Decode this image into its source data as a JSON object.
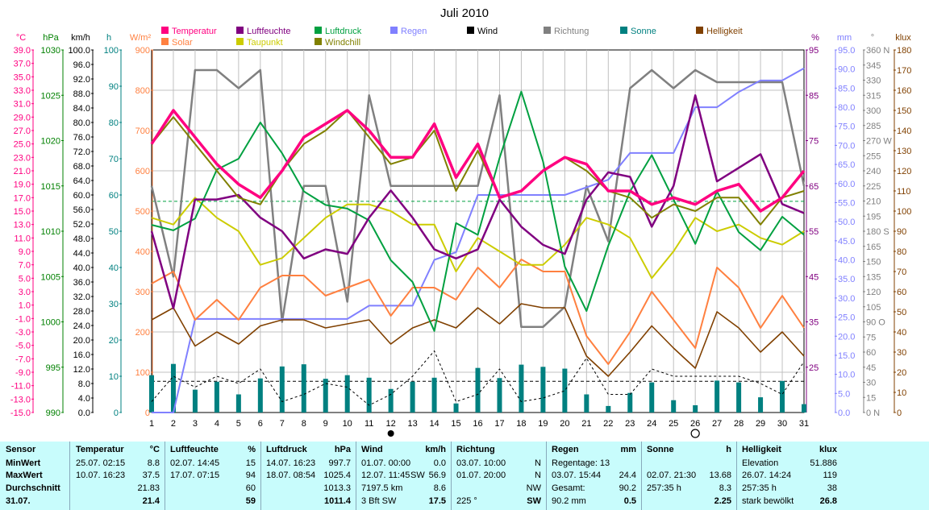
{
  "title": "Juli 2010",
  "colors": {
    "temperatur": "#ff0080",
    "solar": "#ff8040",
    "luftfeuchte": "#800080",
    "taupunkt": "#cccc00",
    "luftdruck": "#00a040",
    "windchill": "#808000",
    "regen": "#8080ff",
    "wind": "#000000",
    "richtung": "#808080",
    "sonne": "#008080",
    "helligkeit": "#804000"
  },
  "legend": [
    {
      "label": "Temperatur",
      "color": "#ff0080"
    },
    {
      "label": "Solar",
      "color": "#ff8040"
    },
    {
      "label": "Luftfeuchte",
      "color": "#800080"
    },
    {
      "label": "Taupunkt",
      "color": "#cccc00"
    },
    {
      "label": "Luftdruck",
      "color": "#00a040"
    },
    {
      "label": "Windchill",
      "color": "#808000"
    },
    {
      "label": "Regen",
      "color": "#8080ff"
    },
    {
      "label": "Wind",
      "color": "#000000"
    },
    {
      "label": "Richtung",
      "color": "#808080"
    },
    {
      "label": "Sonne",
      "color": "#008080"
    },
    {
      "label": "Helligkeit",
      "color": "#804000"
    }
  ],
  "axis_units": {
    "temp": "°C",
    "hpa": "hPa",
    "kmh": "km/h",
    "h": "h",
    "wm2": "W/m²",
    "pct": "%",
    "mm": "mm",
    "deg": "°",
    "klux": "klux"
  },
  "chart_data": {
    "type": "line",
    "title": "Juli 2010",
    "x": [
      1,
      2,
      3,
      4,
      5,
      6,
      7,
      8,
      9,
      10,
      11,
      12,
      13,
      14,
      15,
      16,
      17,
      18,
      19,
      20,
      21,
      22,
      23,
      24,
      25,
      26,
      27,
      28,
      29,
      30,
      31
    ],
    "series": [
      {
        "name": "Temperatur",
        "unit": "°C",
        "values": [
          25,
          30,
          26,
          22,
          19,
          17,
          21,
          26,
          28,
          30,
          27,
          23,
          23,
          28,
          20,
          25,
          17,
          18,
          21,
          23,
          22,
          18,
          18,
          16,
          17,
          16,
          18,
          19,
          15,
          17,
          21
        ]
      },
      {
        "name": "Windchill",
        "unit": "°C",
        "values": [
          25,
          29,
          25,
          21,
          17,
          16,
          21,
          25,
          27,
          30,
          26,
          22,
          23,
          27,
          18,
          24,
          17,
          18,
          21,
          23,
          21,
          18,
          17,
          14,
          16,
          15,
          17,
          17,
          13,
          17,
          18
        ]
      },
      {
        "name": "Taupunkt",
        "unit": "°C",
        "values": [
          14,
          13,
          17,
          14,
          12,
          7,
          8,
          11,
          14,
          16,
          16,
          15,
          13,
          13,
          6,
          11,
          9,
          7,
          7,
          10,
          14,
          13,
          11,
          5,
          9,
          14,
          12,
          13,
          11,
          10,
          12
        ]
      },
      {
        "name": "Luftfeuchte",
        "unit": "%",
        "values": [
          55,
          38,
          62,
          62,
          63,
          58,
          55,
          49,
          51,
          50,
          58,
          64,
          58,
          51,
          49,
          51,
          62,
          56,
          52,
          50,
          62,
          68,
          67,
          56,
          65,
          85,
          66,
          69,
          72,
          61,
          59
        ]
      },
      {
        "name": "Luftdruck",
        "unit": "hPa",
        "values": [
          1010.7,
          1010.1,
          1011.4,
          1016.8,
          1018,
          1022,
          1018.6,
          1014.4,
          1012.9,
          1012.5,
          1011.2,
          1006.8,
          1004.4,
          999,
          1010.9,
          1009.6,
          1018.1,
          1025.4,
          1017.7,
          1006.1,
          1001.2,
          1008.4,
          1014.4,
          1018.4,
          1013.5,
          1008.6,
          1014.4,
          1009.9,
          1007.9,
          1011.6,
          1009.6
        ]
      },
      {
        "name": "Solar",
        "unit": "W/m²",
        "values": [
          320,
          350,
          230,
          280,
          230,
          310,
          340,
          340,
          290,
          310,
          330,
          240,
          310,
          310,
          280,
          360,
          310,
          380,
          350,
          350,
          190,
          120,
          200,
          300,
          230,
          160,
          360,
          310,
          210,
          290,
          210
        ]
      },
      {
        "name": "Helligkeit",
        "unit": "klux",
        "values": [
          46,
          52,
          33,
          40,
          34,
          43,
          46,
          46,
          42,
          44,
          46,
          34,
          42,
          46,
          42,
          52,
          44,
          54,
          52,
          52,
          28,
          18,
          30,
          43,
          32,
          22,
          50,
          42,
          30,
          40,
          28
        ]
      },
      {
        "name": "Regen",
        "unit": "mm",
        "values": [
          0,
          0,
          24.5,
          24.5,
          24.5,
          24.5,
          24.5,
          24.5,
          24.5,
          24.5,
          28,
          28,
          28,
          40,
          42,
          57,
          57,
          57,
          57,
          57,
          59,
          61,
          68,
          68,
          68,
          80,
          80,
          84,
          87,
          87,
          90.2
        ]
      },
      {
        "name": "Richtung",
        "unit": "°",
        "values": [
          225,
          135,
          340,
          340,
          322,
          340,
          90,
          225,
          225,
          110,
          315,
          225,
          225,
          225,
          225,
          225,
          315,
          85,
          85,
          105,
          225,
          170,
          322,
          340,
          322,
          340,
          328,
          328,
          328,
          328,
          225
        ]
      },
      {
        "name": "Wind",
        "unit": "km/h",
        "values": [
          3,
          10,
          7,
          10,
          8,
          12,
          3,
          5,
          8,
          7,
          2,
          5,
          10,
          17,
          3,
          5,
          12,
          3,
          4,
          6,
          15,
          5,
          5,
          12,
          10,
          10,
          10,
          10,
          8,
          5,
          14
        ]
      },
      {
        "name": "Sonne",
        "unit": "h",
        "values": [
          10.3,
          13.4,
          6.3,
          8.5,
          5,
          9.4,
          12.7,
          13.3,
          9.3,
          10.3,
          9.6,
          6.5,
          8.5,
          9.6,
          2.5,
          12.3,
          9.5,
          13.2,
          12.6,
          12.1,
          5,
          1.8,
          5.4,
          8.3,
          3.4,
          2,
          8.8,
          8.3,
          4.2,
          8.7,
          2.3
        ]
      }
    ],
    "reference_lines": [
      {
        "value": 1013.3,
        "unit": "hPa",
        "color": "#00a040"
      },
      {
        "value": 8.6,
        "unit": "km/h",
        "color": "#000000"
      }
    ],
    "axes": [
      {
        "id": "temp",
        "unit": "°C",
        "min": -15,
        "max": 39,
        "step": 2,
        "decimals": 1,
        "color": "#ff0080"
      },
      {
        "id": "hpa",
        "unit": "hPa",
        "min": 990,
        "max": 1030,
        "ticks": [
          990,
          995,
          1000,
          1005,
          1010,
          1015,
          1020,
          1025,
          1030
        ],
        "color": "#008000"
      },
      {
        "id": "kmh",
        "unit": "km/h",
        "min": 0,
        "max": 100,
        "step": 4,
        "decimals": 1,
        "color": "#000000"
      },
      {
        "id": "h",
        "unit": "h",
        "min": 0,
        "max": 100,
        "step": 10,
        "decimals": 0,
        "color": "#008080"
      },
      {
        "id": "wm2",
        "unit": "W/m²",
        "min": 0,
        "max": 900,
        "step": 100,
        "decimals": 0,
        "color": "#ff8040"
      },
      {
        "id": "pct",
        "unit": "%",
        "min": 15,
        "max": 95,
        "ticks": [
          25,
          35,
          45,
          55,
          65,
          75,
          85,
          95
        ],
        "color": "#800080"
      },
      {
        "id": "mm",
        "unit": "mm",
        "min": 0,
        "max": 95,
        "step": 5,
        "decimals": 1,
        "color": "#8080ff"
      },
      {
        "id": "deg",
        "unit": "°",
        "min": 0,
        "max": 360,
        "step": 15,
        "decimals": 0,
        "color": "#808080",
        "labels": {
          "0": "N",
          "90": "O",
          "180": "S",
          "270": "W",
          "360": "N"
        }
      },
      {
        "id": "klux",
        "unit": "klux",
        "min": 0,
        "max": 180,
        "step": 10,
        "decimals": 0,
        "color": "#804000"
      }
    ],
    "grid": true
  },
  "table": {
    "sensor": {
      "h": "Sensor",
      "r1": "MinWert",
      "r2": "MaxWert",
      "r3": "Durchschnitt",
      "r4": "31.07."
    },
    "temperatur": {
      "h": "Temperatur",
      "u": "°C",
      "r1a": "25.07.  02:15",
      "r1b": "8.8",
      "r2a": "10.07.  16:23",
      "r2b": "37.5",
      "r3b": "21.83",
      "r4b": "21.4"
    },
    "luftfeuchte": {
      "h": "Luftfeuchte",
      "u": "%",
      "r1a": "02.07.  14:45",
      "r1b": "15",
      "r2a": "17.07.  07:15",
      "r2b": "94",
      "r3b": "60",
      "r4b": "59"
    },
    "luftdruck": {
      "h": "Luftdruck",
      "u": "hPa",
      "r1a": "14.07.  16:23",
      "r1b": "997.7",
      "r2a": "18.07.  08:54",
      "r2b": "1025.4",
      "r3b": "1013.3",
      "r4b": "1011.4"
    },
    "wind": {
      "h": "Wind",
      "u": "km/h",
      "r1a": "01.07.  00:00",
      "r1b": "0.0",
      "r2a": "12.07.  11:45",
      "r2c": "SW",
      "r2b": "56.9",
      "r3a": "7197.5 km",
      "r3b": "8.6",
      "r4a": "3 Bft SW",
      "r4b": "17.5"
    },
    "richtung": {
      "h": "Richtung",
      "r1a": "03.07.  10:00",
      "r1b": "N",
      "r2a": "01.07.  20:00",
      "r2b": "N",
      "r3b": "NW",
      "r4a": "225 °",
      "r4b": "SW"
    },
    "regen": {
      "h": "Regen",
      "u": "mm",
      "r1a": "Regentage: 13",
      "r2a": "03.07.  15:44",
      "r2b": "24.4",
      "r3a": "Gesamt:",
      "r3b": "90.2",
      "r4a": "90.2 mm",
      "r4b": "0.5"
    },
    "sonne": {
      "h": "Sonne",
      "u": "h",
      "r2a": "02.07.  21:30",
      "r2b": "13.68",
      "r3a": "257:35 h",
      "r3b": "8.3",
      "r4b": "2.25"
    },
    "helligkeit": {
      "h": "Helligkeit",
      "u": "klux",
      "r1a": "Elevation",
      "r1b": "51.886",
      "r2a": "26.07.  14:24",
      "r2b": "119",
      "r3a": "257:35 h",
      "r3b": "38",
      "r4a": "stark bewölkt",
      "r4b": "26.8"
    }
  }
}
